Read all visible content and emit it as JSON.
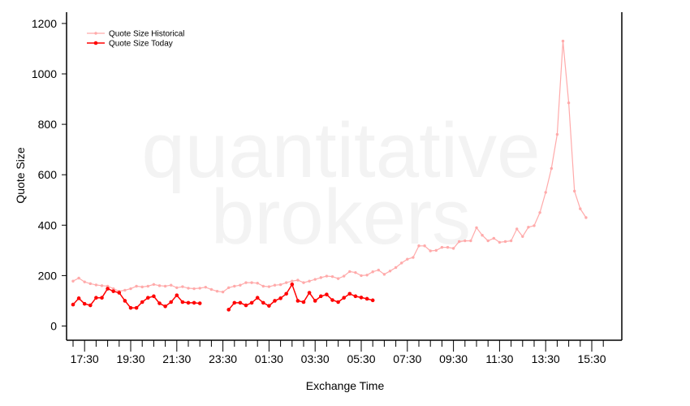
{
  "chart_data": {
    "type": "line",
    "xlabel": "Exchange Time",
    "ylabel": "Quote Size",
    "ylim": [
      -60,
      1240
    ],
    "yticks": [
      0,
      200,
      400,
      600,
      800,
      1000,
      1200
    ],
    "xticks": [
      "17:30",
      "19:30",
      "21:30",
      "23:30",
      "01:30",
      "03:30",
      "05:30",
      "07:30",
      "09:30",
      "11:30",
      "13:30",
      "15:30"
    ],
    "x_interval_minutes": 15,
    "x_start": "17:00",
    "x_end": "16:00 next day",
    "watermark": [
      "quantitative",
      "brokers"
    ],
    "legend": {
      "position": "top-left"
    },
    "series": [
      {
        "name": "Quote Size Historical",
        "color": "#ffaaaa",
        "marker": "small-dot",
        "values": [
          178,
          190,
          175,
          168,
          163,
          160,
          158,
          148,
          138,
          142,
          148,
          158,
          155,
          158,
          165,
          160,
          158,
          162,
          152,
          156,
          150,
          148,
          150,
          154,
          145,
          138,
          135,
          152,
          158,
          162,
          172,
          172,
          170,
          158,
          156,
          162,
          164,
          172,
          178,
          182,
          172,
          178,
          185,
          192,
          198,
          196,
          188,
          198,
          216,
          212,
          200,
          202,
          215,
          222,
          205,
          218,
          232,
          250,
          265,
          272,
          318,
          318,
          298,
          300,
          312,
          312,
          308,
          335,
          338,
          338,
          390,
          360,
          338,
          348,
          332,
          335,
          338,
          385,
          355,
          392,
          398,
          450,
          530,
          625,
          760,
          1130,
          885,
          535,
          465,
          430
        ]
      },
      {
        "name": "Quote Size Today",
        "color": "#ff0000",
        "marker": "dot",
        "values": [
          85,
          110,
          88,
          82,
          112,
          112,
          148,
          138,
          132,
          100,
          72,
          72,
          95,
          112,
          118,
          90,
          78,
          95,
          122,
          95,
          92,
          92,
          90,
          null,
          null,
          null,
          null,
          65,
          92,
          92,
          82,
          92,
          112,
          92,
          80,
          100,
          110,
          128,
          165,
          100,
          95,
          132,
          100,
          118,
          125,
          103,
          95,
          112,
          128,
          118,
          113,
          108,
          102
        ]
      }
    ]
  }
}
